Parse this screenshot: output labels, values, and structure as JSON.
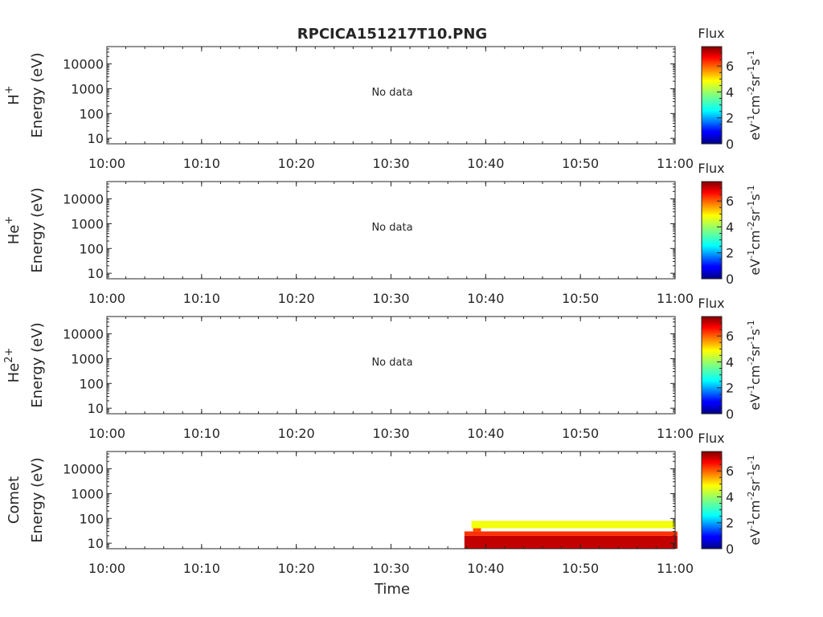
{
  "figure": {
    "title": "RPCICA151217T10.PNG",
    "xlabel": "Time"
  },
  "colorbar": {
    "label": "Flux",
    "units_main": "eV",
    "units_parts": [
      "-1",
      "cm",
      "-2",
      "sr",
      "-1",
      "s",
      "-1"
    ],
    "ticks": [
      "0",
      "2",
      "4",
      "6"
    ],
    "range": [
      0,
      7.5
    ],
    "colormap": "jet"
  },
  "chart_data": [
    {
      "type": "heatmap",
      "species_base": "H",
      "species_sup": "+",
      "ylabel": "Energy (eV)",
      "annotation": "No data",
      "x_ticks": [
        "10:00",
        "10:10",
        "10:20",
        "10:30",
        "10:40",
        "10:50",
        "11:00"
      ],
      "xlim": [
        "10:00",
        "11:00"
      ],
      "y_scale": "log",
      "y_ticks": [
        "10",
        "100",
        "1000",
        "10000"
      ],
      "ylim": [
        6,
        50000
      ],
      "data": []
    },
    {
      "type": "heatmap",
      "species_base": "He",
      "species_sup": "+",
      "ylabel": "Energy (eV)",
      "annotation": "No data",
      "x_ticks": [
        "10:00",
        "10:10",
        "10:20",
        "10:30",
        "10:40",
        "10:50",
        "11:00"
      ],
      "xlim": [
        "10:00",
        "11:00"
      ],
      "y_scale": "log",
      "y_ticks": [
        "10",
        "100",
        "1000",
        "10000"
      ],
      "ylim": [
        6,
        50000
      ],
      "data": []
    },
    {
      "type": "heatmap",
      "species_base": "He",
      "species_sup": "2+",
      "ylabel": "Energy (eV)",
      "annotation": "No data",
      "x_ticks": [
        "10:00",
        "10:10",
        "10:20",
        "10:30",
        "10:40",
        "10:50",
        "11:00"
      ],
      "xlim": [
        "10:00",
        "11:00"
      ],
      "y_scale": "log",
      "y_ticks": [
        "10",
        "100",
        "1000",
        "10000"
      ],
      "ylim": [
        6,
        50000
      ],
      "data": []
    },
    {
      "type": "heatmap",
      "species_base": "Comet",
      "species_sup": "",
      "ylabel": "Energy (eV)",
      "annotation": "",
      "x_ticks": [
        "10:00",
        "10:10",
        "10:20",
        "10:30",
        "10:40",
        "10:50",
        "11:00"
      ],
      "xlim": [
        "10:00",
        "11:00"
      ],
      "y_scale": "log",
      "y_ticks": [
        "10",
        "100",
        "1000",
        "10000"
      ],
      "ylim": [
        6,
        50000
      ],
      "data": [
        {
          "time_start": "10:37:45",
          "time_end": "11:00:15",
          "energy_low": 6,
          "energy_high": 20,
          "flux": 7.0
        },
        {
          "time_start": "10:37:45",
          "time_end": "11:00:15",
          "energy_low": 20,
          "energy_high": 30,
          "flux": 6.2
        },
        {
          "time_start": "10:38:40",
          "time_end": "10:39:30",
          "energy_low": 30,
          "energy_high": 60,
          "flux": 6.0
        },
        {
          "time_start": "10:38:30",
          "time_end": "11:00:00",
          "energy_low": 40,
          "energy_high": 80,
          "flux": 4.6
        }
      ]
    }
  ]
}
